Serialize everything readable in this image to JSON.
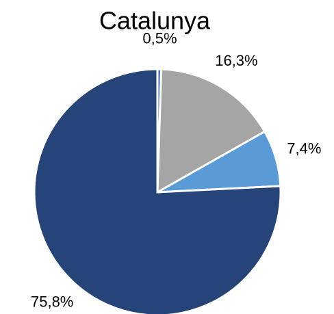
{
  "chart_data": {
    "type": "pie",
    "title": "Catalunya",
    "categories": [
      null,
      null,
      null,
      null
    ],
    "values": [
      0.5,
      16.3,
      7.4,
      75.8
    ],
    "value_labels": [
      "0,5%",
      "16,3%",
      "7,4%",
      "75,8%"
    ],
    "colors": [
      "#4472c4",
      "#a5a5a5",
      "#5b9bd5",
      "#264478"
    ]
  }
}
